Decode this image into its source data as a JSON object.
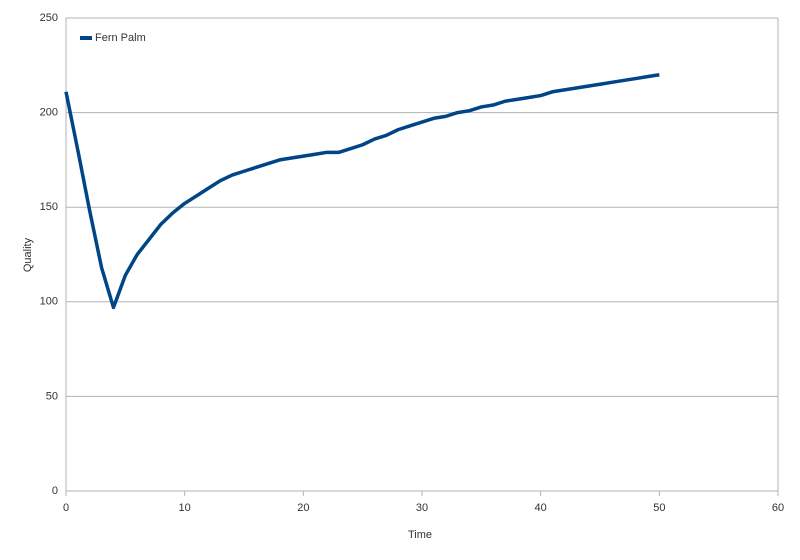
{
  "chart_data": {
    "type": "line",
    "x_label": "Time",
    "y_label": "Quality",
    "x": [
      0,
      1,
      2,
      3,
      4,
      5,
      6,
      7,
      8,
      9,
      10,
      11,
      12,
      13,
      14,
      15,
      16,
      17,
      18,
      19,
      20,
      21,
      22,
      23,
      24,
      25,
      26,
      27,
      28,
      29,
      30,
      31,
      32,
      33,
      34,
      35,
      36,
      37,
      38,
      39,
      40,
      41,
      42,
      43,
      44,
      45,
      46,
      47,
      48,
      49,
      50
    ],
    "series": [
      {
        "name": "Fern Palm",
        "color": "#004586",
        "values": [
          211,
          180,
          148,
          118,
          97,
          114,
          125,
          133,
          141,
          147,
          152,
          156,
          160,
          164,
          167,
          169,
          171,
          173,
          175,
          176,
          177,
          178,
          179,
          179,
          181,
          183,
          186,
          188,
          191,
          193,
          195,
          197,
          198,
          200,
          201,
          203,
          204,
          206,
          207,
          208,
          209,
          211,
          212,
          213,
          214,
          215,
          216,
          217,
          218,
          219,
          220
        ]
      }
    ],
    "xlim": [
      0,
      60
    ],
    "xticks": [
      0,
      10,
      20,
      30,
      40,
      50,
      60
    ],
    "ylim": [
      0,
      250
    ],
    "yticks": [
      0,
      50,
      100,
      150,
      200,
      250
    ],
    "grid": true,
    "legend": "upper-left"
  }
}
